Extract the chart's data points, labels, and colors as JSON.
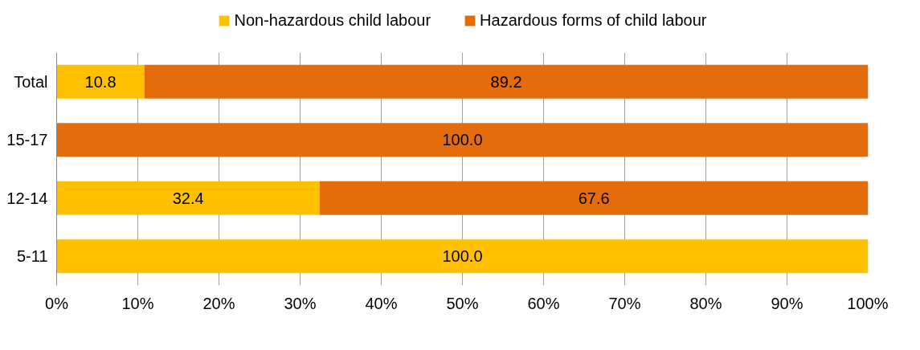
{
  "chart_data": {
    "type": "bar",
    "orientation": "horizontal",
    "stacked": true,
    "categories": [
      "Total",
      "15-17",
      "12-14",
      "5-11"
    ],
    "series": [
      {
        "name": "Non-hazardous child labour",
        "color": "#ffc000",
        "values": [
          10.8,
          0,
          32.4,
          100
        ],
        "value_labels": [
          "10.8",
          null,
          "32.4",
          "100.0"
        ]
      },
      {
        "name": "Hazardous forms of child labour",
        "color": "#e46c0a",
        "values": [
          89.2,
          100,
          67.6,
          0
        ],
        "value_labels": [
          "89.2",
          "100.0",
          "67.6",
          null
        ]
      }
    ],
    "xlim": [
      0,
      100
    ],
    "xticks": [
      {
        "value": 0,
        "label": "0%"
      },
      {
        "value": 10,
        "label": "10%"
      },
      {
        "value": 20,
        "label": "20%"
      },
      {
        "value": 30,
        "label": "30%"
      },
      {
        "value": 40,
        "label": "40%"
      },
      {
        "value": 50,
        "label": "50%"
      },
      {
        "value": 60,
        "label": "60%"
      },
      {
        "value": 70,
        "label": "70%"
      },
      {
        "value": 80,
        "label": "80%"
      },
      {
        "value": 90,
        "label": "90%"
      },
      {
        "value": 100,
        "label": "100%"
      }
    ],
    "grid": "x",
    "legend": "top"
  }
}
